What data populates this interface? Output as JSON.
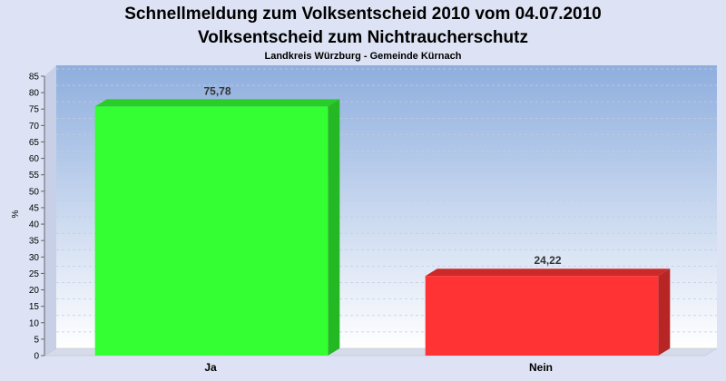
{
  "chart_data": {
    "type": "bar",
    "title": "Schnellmeldung zum Volksentscheid 2010 vom 04.07.2010",
    "title2": "Volksentscheid zum Nichtraucherschutz",
    "subtitle": "Landkreis Würzburg - Gemeinde Kürnach",
    "ylabel": "%",
    "xlabel": "",
    "ylim": [
      0,
      85
    ],
    "ytick_step": 5,
    "grid": true,
    "categories": [
      "Ja",
      "Nein"
    ],
    "values": [
      75.78,
      24.22
    ],
    "value_labels": [
      "75,78",
      "24,22"
    ],
    "colors": [
      "#33ff33",
      "#ff3333"
    ]
  }
}
